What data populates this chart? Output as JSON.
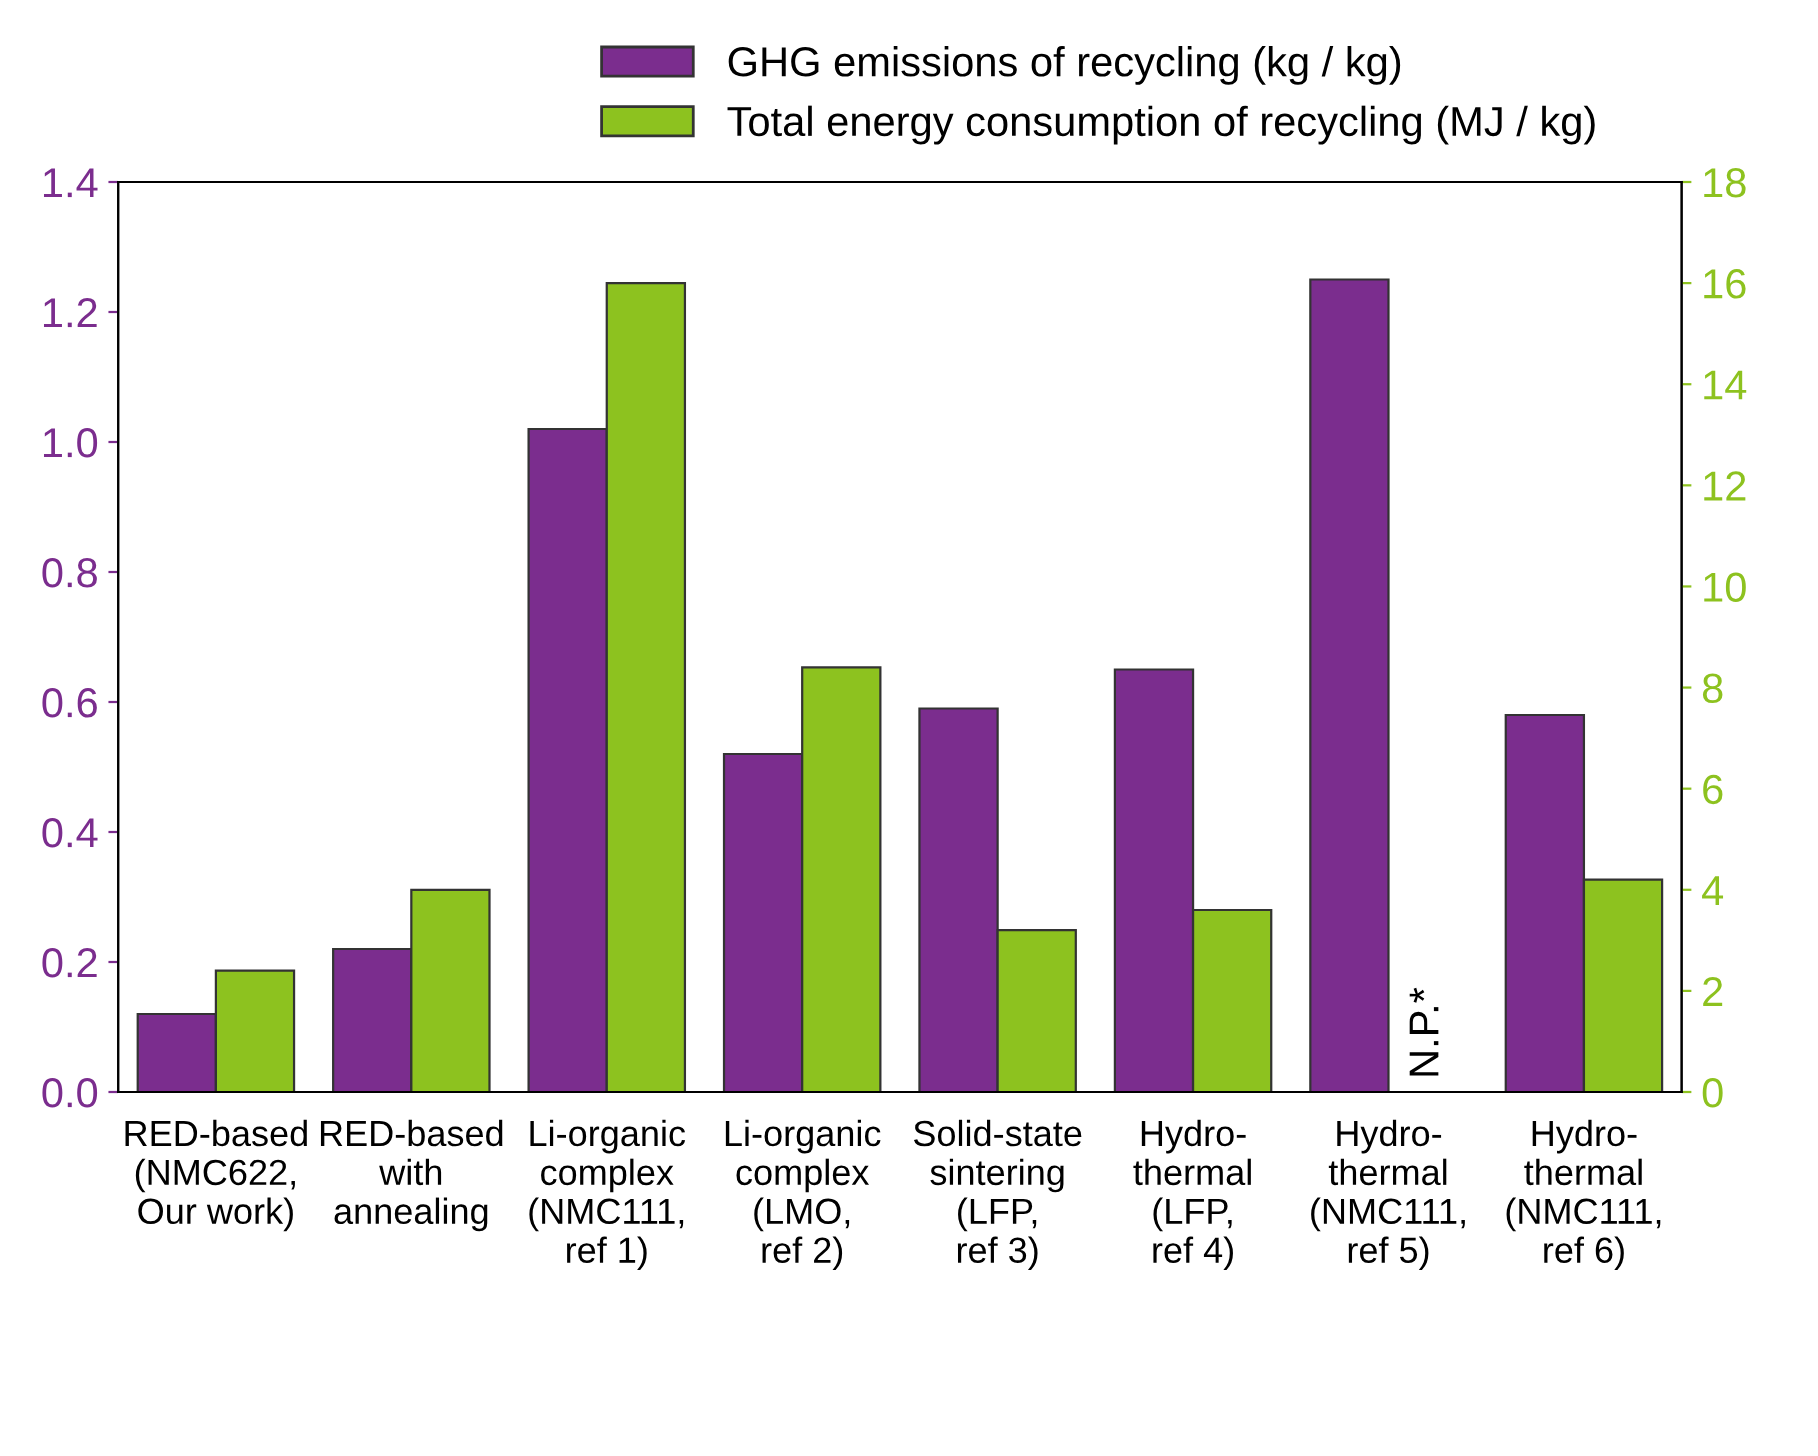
{
  "chart_data": {
    "type": "bar",
    "categories": [
      "RED-based\n(NMC622,\nOur work)",
      "RED-based\nwith\nannealing",
      "Li-organic\ncomplex\n(NMC111,\nref 1)",
      "Li-organic\ncomplex\n(LMO,\nref 2)",
      "Solid-state\nsintering\n(LFP,\nref 3)",
      "Hydro-\nthermal\n(LFP,\nref 4)",
      "Hydro-\nthermal\n(NMC111,\nref 5)",
      "Hydro-\nthermal\n(NMC111,\nref 6)"
    ],
    "series": [
      {
        "name": "GHG emissions of recycling (kg / kg)",
        "color": "#7b2d8e",
        "values": [
          0.12,
          0.22,
          1.02,
          0.52,
          0.59,
          0.65,
          1.25,
          0.58
        ]
      },
      {
        "name": "Total energy consumption of recycling (MJ / kg)",
        "color": "#8dc21f",
        "axis": "y2",
        "values": [
          2.4,
          4.0,
          16,
          8.4,
          3.2,
          3.6,
          null,
          4.2
        ]
      }
    ],
    "ylim": [
      0,
      1.4
    ],
    "yticks": [
      {
        "value": 0,
        "label": "0.0"
      },
      {
        "value": 0.2,
        "label": "0.2"
      },
      {
        "value": 0.4,
        "label": "0.4"
      },
      {
        "value": 0.6,
        "label": "0.6"
      },
      {
        "value": 0.8,
        "label": "0.8"
      },
      {
        "value": 1.0,
        "label": "1.0"
      },
      {
        "value": 1.2,
        "label": "1.2"
      },
      {
        "value": 1.4,
        "label": "1.4"
      }
    ],
    "y2lim": [
      0,
      18
    ],
    "y2ticks": [
      0,
      2,
      4,
      6,
      8,
      10,
      12,
      14,
      16,
      18
    ],
    "annotations": [
      "N.P.*"
    ],
    "legend": "top",
    "grid": false
  }
}
